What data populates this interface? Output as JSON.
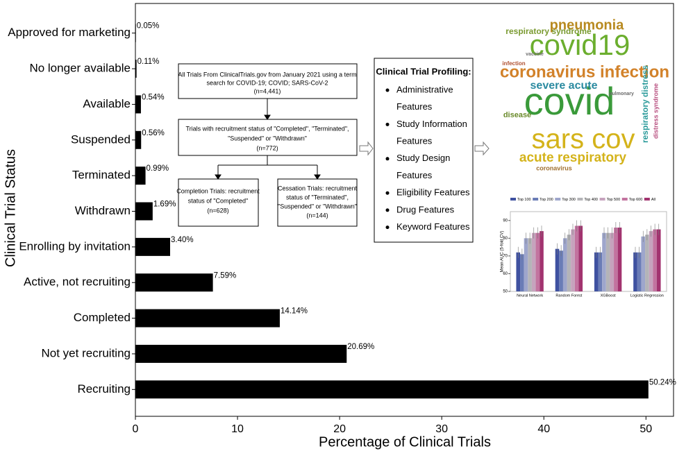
{
  "chart_data": [
    {
      "type": "barh",
      "xlabel": "Percentage of Clinical Trials",
      "ylabel": "Clinical Trial Status",
      "categories": [
        "Approved for marketing",
        "No longer available",
        "Available",
        "Suspended",
        "Terminated",
        "Withdrawn",
        "Enrolling by invitation",
        "Active, not recruiting",
        "Completed",
        "Not yet recruiting",
        "Recruiting"
      ],
      "values": [
        0.05,
        0.11,
        0.54,
        0.56,
        0.99,
        1.69,
        3.4,
        7.59,
        14.14,
        20.69,
        50.24
      ],
      "value_labels": [
        "0.05%",
        "0.11%",
        "0.54%",
        "0.56%",
        "0.99%",
        "1.69%",
        "3.40%",
        "7.59%",
        "14.14%",
        "20.69%",
        "50.24%"
      ],
      "color": "#000000",
      "xlim": [
        0,
        52.7
      ],
      "xticks": [
        0,
        10,
        20,
        30,
        40,
        50
      ]
    },
    {
      "type": "bar",
      "ylabel": "Mean AUC (5-fold CV)",
      "categories": [
        "Neural Network",
        "Random Forest",
        "XGBoost",
        "Logistic Regression"
      ],
      "series": [
        {
          "name": "Top 100",
          "color": "#3f51a0",
          "values": [
            72,
            74,
            72,
            72
          ]
        },
        {
          "name": "Top 200",
          "color": "#6a7cb6",
          "values": [
            71,
            73,
            72,
            72
          ]
        },
        {
          "name": "Top 300",
          "color": "#9ea6cc",
          "values": [
            80,
            80,
            83,
            81
          ]
        },
        {
          "name": "Top 400",
          "color": "#b4b4b8",
          "values": [
            80,
            82,
            83,
            82
          ]
        },
        {
          "name": "Top 500",
          "color": "#c6a3bd",
          "values": [
            83,
            85,
            83,
            84
          ]
        },
        {
          "name": "Top 600",
          "color": "#c2739f",
          "values": [
            83,
            87,
            86,
            85
          ]
        },
        {
          "name": "All",
          "color": "#a2336f",
          "values": [
            84,
            87,
            86,
            85
          ]
        }
      ],
      "ylim": [
        50,
        95
      ],
      "yticks": [
        50,
        60,
        70,
        80,
        90
      ],
      "legend": "top"
    }
  ],
  "flowchart": {
    "boxes": [
      {
        "lines": [
          "All Trials From ClinicalTrials.gov from January 2021 using a term",
          "search for COVID-19; COVID; SARS-CoV-2",
          "(n=4,441)"
        ]
      },
      {
        "lines": [
          "Trials with recruitment status of \"Completed\", \"Terminated\",",
          "\"Suspended\" or \"Withdrawn\"",
          "(n=772)"
        ]
      },
      {
        "lines": [
          "Completion Trials: recruitment",
          "status of \"Completed\"",
          "(n=628)"
        ]
      },
      {
        "lines": [
          "Cessation Trials: recruitment",
          "status of \"Terminated\",",
          "\"Suspended\" or \"Withdrawn\"",
          "(n=144)"
        ]
      }
    ]
  },
  "profiling": {
    "title": "Clinical Trial Profiling:",
    "items": [
      [
        "Administrative",
        "Features"
      ],
      [
        "Study Information",
        "Features"
      ],
      [
        "Study Design",
        "Features"
      ],
      [
        "Eligibility Features"
      ],
      [
        "Drug Features"
      ],
      [
        "Keyword Features"
      ]
    ]
  },
  "word_cloud": {
    "words": [
      "covid19",
      "covid",
      "sars cov",
      "coronavirus infection",
      "pneumonia",
      "acute respiratory",
      "severe acute",
      "respiratory syndrome",
      "respiratory distress",
      "distress syndrome",
      "coronavirus",
      "disease",
      "infection",
      "pulmonary",
      "vaccine"
    ]
  }
}
